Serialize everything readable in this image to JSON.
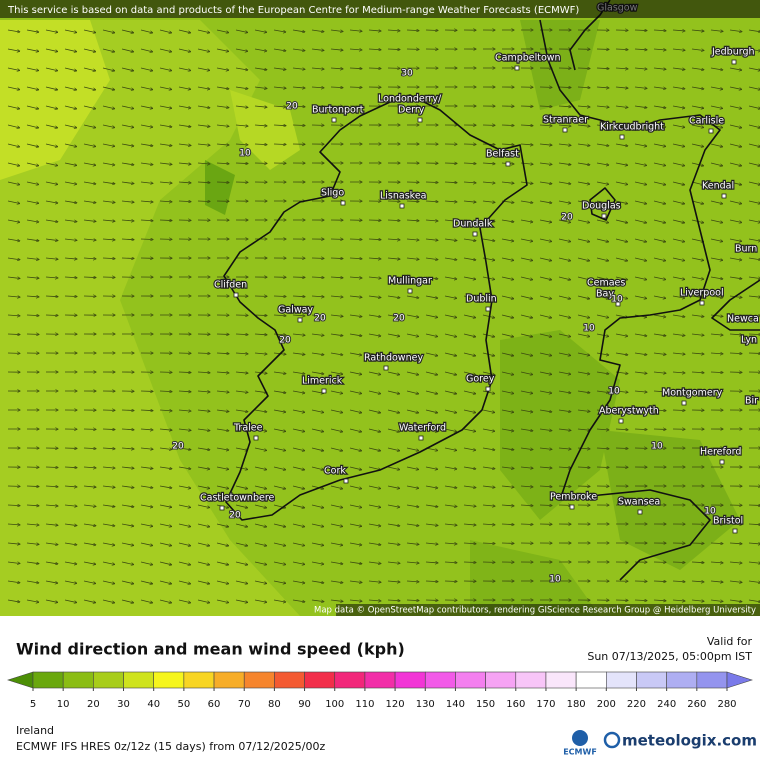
{
  "banner": "This service is based on data and products of the European Centre for Medium-range Weather Forecasts (ECMWF)",
  "map": {
    "cities": [
      "Glasgow",
      "Campbeltown",
      "Jedburgh",
      "Londonderry/",
      "Derry",
      "Burtonport",
      "Stranraer",
      "Kirkcudbright",
      "Carlisle",
      "Belfast",
      "Sligo",
      "Lisnaskea",
      "Kendal",
      "Douglas",
      "Dundalk",
      "Burn",
      "Clifden",
      "Mullingar",
      "Cemaes",
      "Bay",
      "Liverpool",
      "Dublin",
      "Galway",
      "Newca",
      "Lyn",
      "Rathdowney",
      "Limerick",
      "Gorey",
      "Montgomery",
      "Aberystwyth",
      "Bir",
      "Tralee",
      "Waterford",
      "Hereford",
      "Cork",
      "Castletownbere",
      "Pembroke",
      "Swansea",
      "Bristol"
    ],
    "contour_labels": [
      30,
      20,
      10,
      20,
      20,
      20,
      20,
      10,
      10,
      10,
      20,
      10,
      20,
      10,
      10
    ],
    "attribution": "Map data © OpenStreetMap contributors, rendering GIScience Research Group @ Heidelberg University"
  },
  "legend": {
    "title": "Wind direction and mean wind speed (kph)",
    "valid_label": "Valid for",
    "valid_time": "Sun 07/13/2025, 05:00pm IST",
    "ticks": [
      5,
      10,
      20,
      30,
      40,
      50,
      60,
      70,
      80,
      90,
      100,
      110,
      120,
      130,
      140,
      150,
      160,
      170,
      180,
      200,
      220,
      240,
      260,
      280
    ],
    "colors": [
      "#4c8f06",
      "#6aa80d",
      "#8bbd14",
      "#a8cd1a",
      "#cfe31d",
      "#f6f51c",
      "#f8d523",
      "#f7ad28",
      "#f6852d",
      "#f45a32",
      "#f22e4a",
      "#f2277a",
      "#f22ea8",
      "#f235d6",
      "#f25ae8",
      "#f47fef",
      "#f6a3f4",
      "#f8c5f8",
      "#fae6fb",
      "#ffffff",
      "#e4e4fb",
      "#c9c9f6",
      "#aeaef2",
      "#9494ee",
      "#7a7aea"
    ]
  },
  "footer": {
    "region": "Ireland",
    "model": "ECMWF IFS HRES 0z/12z (15 days) from  07/12/2025/00z",
    "ecmwf": "ECMWF",
    "brand": "meteologix.com"
  }
}
